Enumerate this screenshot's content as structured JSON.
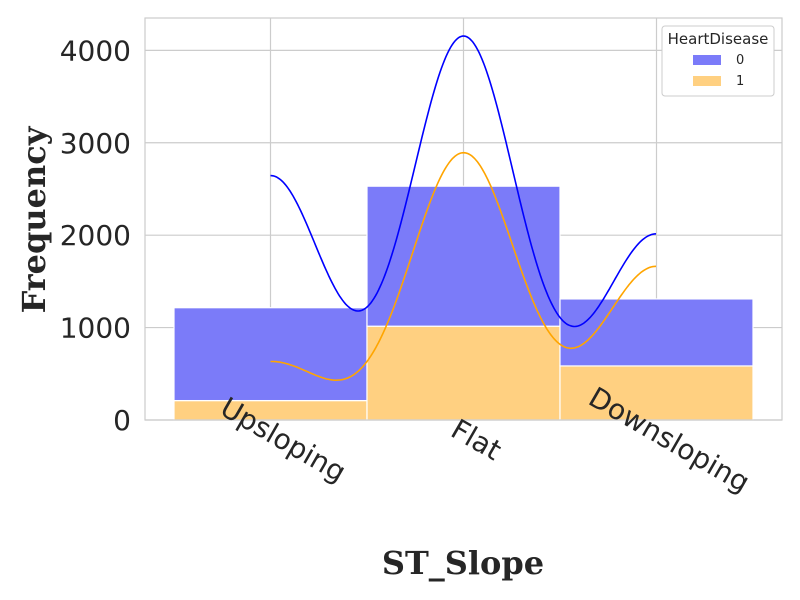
{
  "chart_data": {
    "type": "bar",
    "stacked": true,
    "categories": [
      "Upsloping",
      "Flat",
      "Downsloping"
    ],
    "series": [
      {
        "name": "0",
        "color": "#7b7bf9",
        "kde_color": "#0000ff",
        "values": [
          1005,
          1515,
          725
        ]
      },
      {
        "name": "1",
        "color": "#ffd081",
        "kde_color": "#ffa500",
        "values": [
          210,
          1015,
          585
        ]
      }
    ],
    "kde": [
      {
        "name": "0",
        "peaks": [
          2640,
          4150,
          2010
        ]
      },
      {
        "name": "1",
        "peaks": [
          630,
          2890,
          1660
        ]
      }
    ],
    "xlabel": "ST_Slope",
    "ylabel": "Frequency",
    "ylim": [
      0,
      4350
    ],
    "yticks": [
      0,
      1000,
      2000,
      3000,
      4000
    ],
    "grid": true,
    "legend": {
      "title": "HeartDisease",
      "position": "top-right"
    }
  }
}
